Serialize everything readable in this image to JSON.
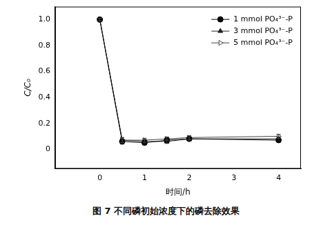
{
  "chart_data": {
    "type": "line",
    "title": "图 7  不同磷初始浓度下的磷去除效果",
    "x_label": "时间/h",
    "y_label": "C/C₀",
    "x": [
      0,
      0.5,
      1,
      1.5,
      2,
      4
    ],
    "series": [
      {
        "name": "1 mmol PO₄³⁻-P",
        "color": "#000000",
        "marker": "circle",
        "line_style": "solid",
        "values": [
          1.0,
          0.06,
          0.05,
          0.07,
          0.08,
          0.07
        ],
        "errors": [
          0.01,
          0.02,
          0.015,
          0.02,
          0.015,
          0.015
        ]
      },
      {
        "name": "3 mmol PO₄³⁻-P",
        "color": "#222222",
        "marker": "triangle",
        "line_style": "solid",
        "values": [
          1.0,
          0.07,
          0.06,
          0.06,
          0.08,
          0.08
        ],
        "errors": [
          0.01,
          0.02,
          0.015,
          0.015,
          0.015,
          0.015
        ]
      },
      {
        "name": "5 mmol PO₄³⁻-P",
        "color": "#444444",
        "marker": "triangle-open-right",
        "line_style": "solid",
        "values": [
          1.0,
          0.07,
          0.07,
          0.08,
          0.09,
          0.1
        ],
        "errors": [
          0.01,
          0.02,
          0.015,
          0.015,
          0.015,
          0.015
        ]
      }
    ],
    "xlim": [
      -1,
      4.5
    ],
    "xticks": [
      0,
      1,
      2,
      3,
      4
    ],
    "ylim": [
      -0.15,
      1.1
    ],
    "yticks": [
      0,
      0.2,
      0.4,
      0.6,
      0.8,
      {
        "value": 1,
        "label": "1.0"
      }
    ],
    "grid": false,
    "legend": "upper right"
  }
}
